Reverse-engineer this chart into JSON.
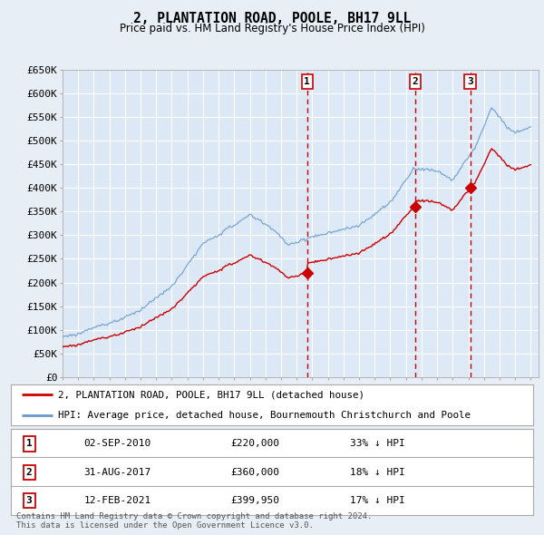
{
  "title": "2, PLANTATION ROAD, POOLE, BH17 9LL",
  "subtitle": "Price paid vs. HM Land Registry's House Price Index (HPI)",
  "background_color": "#e8eef5",
  "plot_bg_color": "#dce8f5",
  "plot_bg_color2": "#e8f0fa",
  "grid_color": "#ffffff",
  "hpi_line_color": "#6699cc",
  "price_line_color": "#cc0000",
  "vline_color": "#cc0000",
  "ylim": [
    0,
    650000
  ],
  "yticks": [
    0,
    50000,
    100000,
    150000,
    200000,
    250000,
    300000,
    350000,
    400000,
    450000,
    500000,
    550000,
    600000,
    650000
  ],
  "ytick_labels": [
    "£0",
    "£50K",
    "£100K",
    "£150K",
    "£200K",
    "£250K",
    "£300K",
    "£350K",
    "£400K",
    "£450K",
    "£500K",
    "£550K",
    "£600K",
    "£650K"
  ],
  "sale_years_float": [
    2010.67,
    2017.58,
    2021.12
  ],
  "sale_prices": [
    220000,
    360000,
    399950
  ],
  "sale_labels": [
    "1",
    "2",
    "3"
  ],
  "sale_label_dates": [
    "02-SEP-2010",
    "31-AUG-2017",
    "12-FEB-2021"
  ],
  "sale_price_labels": "£220,000|£360,000|£399,950",
  "sale_hpi_labels": "33% ↓ HPI|18% ↓ HPI|17% ↓ HPI",
  "legend_line1": "2, PLANTATION ROAD, POOLE, BH17 9LL (detached house)",
  "legend_line2": "HPI: Average price, detached house, Bournemouth Christchurch and Poole",
  "footer1": "Contains HM Land Registry data © Crown copyright and database right 2024.",
  "footer2": "This data is licensed under the Open Government Licence v3.0."
}
